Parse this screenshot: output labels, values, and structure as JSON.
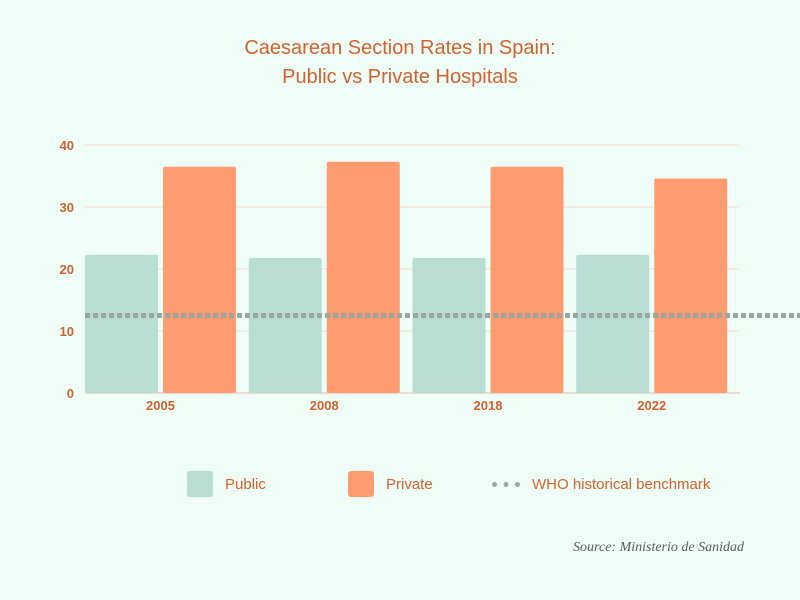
{
  "chart_data": {
    "type": "bar",
    "title_lines": [
      "Caesarean Section Rates in Spain:",
      "Public vs Private Hospitals"
    ],
    "categories": [
      "2005",
      "2008",
      "2018",
      "2022"
    ],
    "series": [
      {
        "name": "Public",
        "values": [
          22.3,
          21.8,
          21.8,
          22.3
        ],
        "color": "#b8ddd2"
      },
      {
        "name": "Private",
        "values": [
          36.5,
          37.3,
          36.5,
          34.6
        ],
        "color": "#ff9b71"
      }
    ],
    "reference_line": {
      "name": "WHO historical benchmark",
      "value": 12.5,
      "color": "#9aa7a1"
    },
    "ylim": [
      0,
      40
    ],
    "yticks": [
      0,
      10,
      20,
      30,
      40
    ],
    "grid": true,
    "legend_position": "bottom",
    "xlabel": "",
    "ylabel": "",
    "source": "Source: Ministerio de Sanidad",
    "colors": {
      "background": "#effff8",
      "text": "#d4602f",
      "grid": "#f5d8cb",
      "axis": "#e7b7a3"
    }
  }
}
